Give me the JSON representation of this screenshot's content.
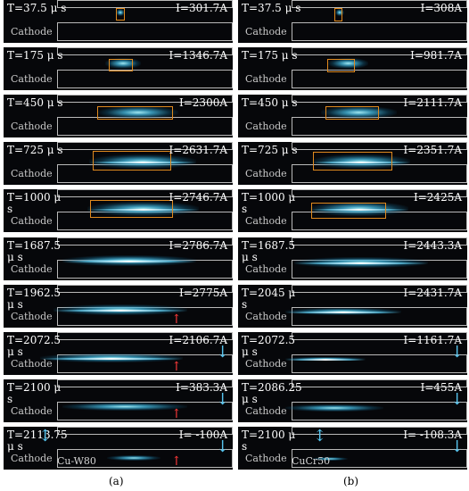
{
  "panels": {
    "a": {
      "caption": "(a)",
      "sample": "Cu-W80",
      "frames": [
        {
          "time": "T=37.5 μ s",
          "current": "I=301.7A"
        },
        {
          "time": "T=175 μ s",
          "current": "I=1346.7A"
        },
        {
          "time": "T=450 μ s",
          "current": "I=2300A"
        },
        {
          "time": "T=725 μ s",
          "current": "I=2631.7A"
        },
        {
          "time": "T=1000 μ s",
          "current": "I=2746.7A"
        },
        {
          "time": "T=1687.5 μ s",
          "current": "I=2786.7A"
        },
        {
          "time": "T=1962.5 μ s",
          "current": "I=2775A"
        },
        {
          "time": "T=2072.5 μ s",
          "current": "I=2106.7A"
        },
        {
          "time": "T=2100 μ s",
          "current": "I=383.3A"
        },
        {
          "time": "T=2113.75\nμ s",
          "current": "I= -100A"
        }
      ]
    },
    "b": {
      "caption": "(b)",
      "sample": "CuCr50",
      "frames": [
        {
          "time": "T=37.5 μ s",
          "current": "I=308A"
        },
        {
          "time": "T=175 μ s",
          "current": "I=981.7A"
        },
        {
          "time": "T=450 μ s",
          "current": "I=2111.7A"
        },
        {
          "time": "T=725 μ s",
          "current": "I=2351.7A"
        },
        {
          "time": "T=1000 μ s",
          "current": "I=2425A"
        },
        {
          "time": "T=1687.5 μ s",
          "current": "I=2443.3A"
        },
        {
          "time": "T=2045 μ s",
          "current": "I=2431.7A"
        },
        {
          "time": "T=2072.5 μ s",
          "current": "I=1161.7A"
        },
        {
          "time": "T=2086.25\nμ s",
          "current": "I=455A"
        },
        {
          "time": "T=2100 μ s",
          "current": "I= -108.3A"
        }
      ]
    }
  },
  "cathode_label": "Cathode",
  "colors": {
    "box": "#e08a1e",
    "arrow": "#56c4ee",
    "marker": "#ff3a3a",
    "plasma": "#7fe3ff"
  }
}
